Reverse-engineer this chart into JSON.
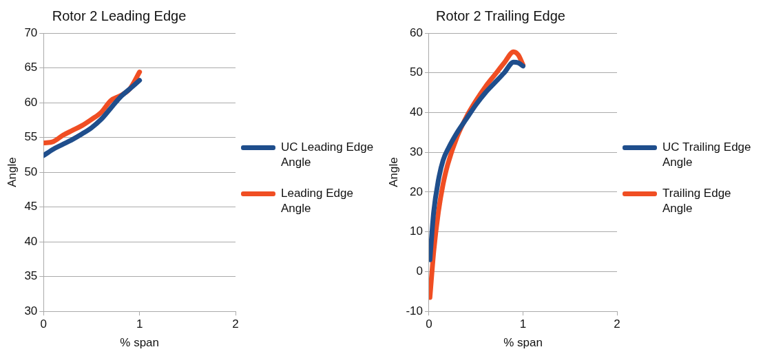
{
  "chart_data": [
    {
      "type": "line",
      "title": "Rotor 2 Leading Edge",
      "xlabel": "% span",
      "ylabel": "Angle",
      "xlim": [
        0,
        2
      ],
      "xticks": [
        0,
        1,
        2
      ],
      "ylim": [
        30,
        70
      ],
      "yticks": [
        30,
        35,
        40,
        45,
        50,
        55,
        60,
        65,
        70
      ],
      "grid": "y",
      "legend": "right",
      "marker": "none",
      "line_style": "solid",
      "series": [
        {
          "name": "UC Leading Edge Angle",
          "color": "#1f4e8c",
          "x": [
            0,
            0.1,
            0.2,
            0.3,
            0.4,
            0.5,
            0.6,
            0.7,
            0.8,
            0.9,
            1.0
          ],
          "values": [
            52.4,
            53.3,
            54,
            54.7,
            55.5,
            56.4,
            57.6,
            59.2,
            60.8,
            62,
            63.2
          ]
        },
        {
          "name": "Leading Edge Angle",
          "color": "#f04e23",
          "x": [
            0,
            0.1,
            0.2,
            0.3,
            0.4,
            0.5,
            0.6,
            0.7,
            0.8,
            0.9,
            1.0
          ],
          "values": [
            54.2,
            54.4,
            55.3,
            56,
            56.7,
            57.6,
            58.6,
            60.3,
            61,
            62,
            64.4
          ]
        }
      ]
    },
    {
      "type": "line",
      "title": "Rotor 2 Trailing Edge",
      "xlabel": "% span",
      "ylabel": "Angle",
      "xlim": [
        0,
        2
      ],
      "xticks": [
        0,
        1,
        2
      ],
      "ylim": [
        -10,
        60
      ],
      "yticks": [
        -10,
        0,
        10,
        20,
        30,
        40,
        50,
        60
      ],
      "grid": "y",
      "legend": "right",
      "marker": "none",
      "line_style": "solid",
      "series": [
        {
          "name": "UC Trailing Edge Angle",
          "color": "#1f4e8c",
          "x": [
            0.01,
            0.05,
            0.1,
            0.15,
            0.21,
            0.3,
            0.4,
            0.5,
            0.6,
            0.7,
            0.8,
            0.9,
            0.95,
            1.0
          ],
          "values": [
            3,
            15,
            23,
            28,
            31.2,
            35,
            38.5,
            42,
            45,
            47.5,
            50,
            52.7,
            52.5,
            51.7
          ]
        },
        {
          "name": "Trailing Edge Angle",
          "color": "#f04e23",
          "x": [
            0.01,
            0.05,
            0.1,
            0.15,
            0.2,
            0.3,
            0.4,
            0.5,
            0.6,
            0.7,
            0.8,
            0.9,
            0.95,
            1.0
          ],
          "values": [
            -6.5,
            5,
            15,
            22,
            27,
            34,
            39,
            43,
            46.5,
            49.5,
            52.5,
            55.3,
            54.5,
            52
          ]
        }
      ]
    }
  ]
}
